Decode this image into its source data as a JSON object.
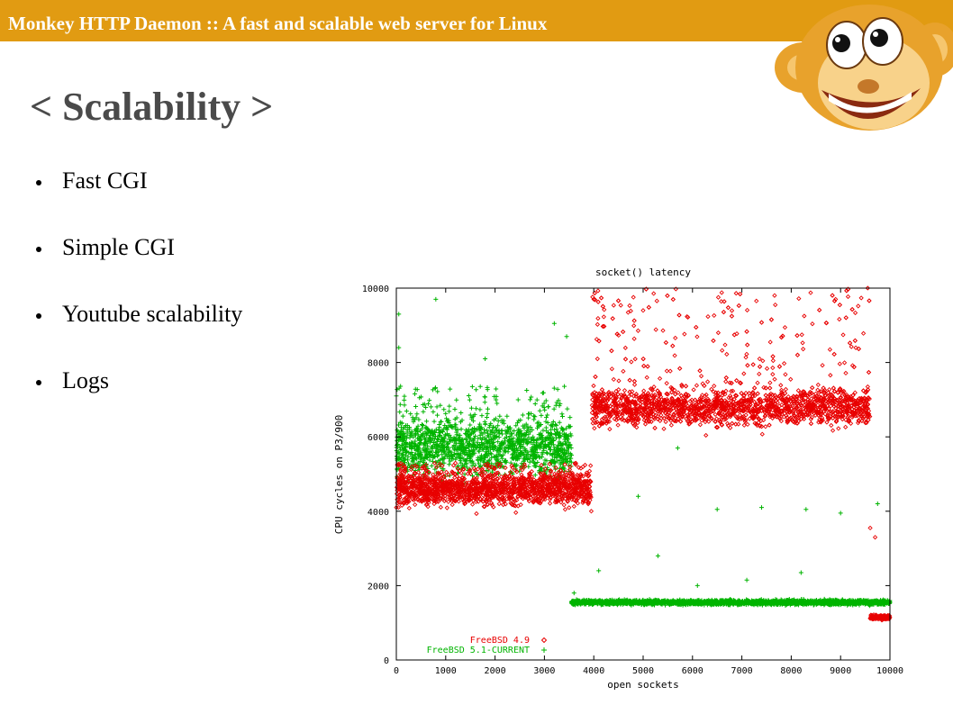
{
  "header": {
    "text": "Monkey HTTP Daemon :: A fast and scalable web server for Linux"
  },
  "slide": {
    "title": "< Scalability >"
  },
  "bullets": [
    "Fast CGI",
    "Simple CGI",
    "Youtube scalability",
    "Logs"
  ],
  "colors": {
    "header_bg": "#e19b12",
    "series_freebsd49": "#e80000",
    "series_freebsd51": "#00b400"
  },
  "icons": {
    "logo": "monkey-mascot-logo"
  },
  "chart_data": {
    "type": "scatter",
    "title": "socket() latency",
    "xlabel": "open sockets",
    "ylabel": "CPU cycles on P3/900",
    "xlim": [
      0,
      10000
    ],
    "ylim": [
      0,
      10000
    ],
    "x_ticks": [
      0,
      1000,
      2000,
      3000,
      4000,
      5000,
      6000,
      7000,
      8000,
      9000,
      10000
    ],
    "y_ticks": [
      0,
      2000,
      4000,
      6000,
      8000,
      10000
    ],
    "legend_position": "bottom-left",
    "series": [
      {
        "name": "FreeBSD 4.9",
        "marker": "◇",
        "color": "#e80000",
        "segments": [
          {
            "x_range": [
              0,
              3950
            ],
            "y_center": 4600,
            "y_spread": 350,
            "outlier_max": 5300
          },
          {
            "x_range": [
              3950,
              9600
            ],
            "y_center": 6800,
            "y_spread": 400,
            "outlier_max": 10000
          },
          {
            "x_range": [
              9600,
              10000
            ],
            "y_center": 1150,
            "y_spread": 50
          }
        ],
        "points": [
          [
            4000,
            9700
          ],
          [
            5000,
            9400
          ],
          [
            8900,
            9700
          ],
          [
            9550,
            10000
          ],
          [
            9600,
            3550
          ],
          [
            9700,
            3300
          ],
          [
            0,
            4100
          ],
          [
            3950,
            4000
          ]
        ]
      },
      {
        "name": "FreeBSD 5.1-CURRENT",
        "marker": "+",
        "color": "#00b400",
        "segments": [
          {
            "x_range": [
              0,
              3550
            ],
            "y_center": 5700,
            "y_spread": 600,
            "outlier_max": 7400
          },
          {
            "x_range": [
              3550,
              10000
            ],
            "y_center": 1550,
            "y_spread": 50
          }
        ],
        "points": [
          [
            0,
            7100
          ],
          [
            50,
            9300
          ],
          [
            50,
            8400
          ],
          [
            800,
            9700
          ],
          [
            1800,
            8100
          ],
          [
            3200,
            9050
          ],
          [
            3450,
            8700
          ],
          [
            4100,
            2400
          ],
          [
            4900,
            4400
          ],
          [
            5300,
            2800
          ],
          [
            6500,
            4050
          ],
          [
            7400,
            4100
          ],
          [
            8200,
            2350
          ],
          [
            8300,
            4050
          ],
          [
            9000,
            3950
          ],
          [
            9750,
            4200
          ],
          [
            5700,
            5700
          ],
          [
            3600,
            1800
          ],
          [
            6100,
            2000
          ],
          [
            7100,
            2150
          ]
        ]
      }
    ]
  }
}
